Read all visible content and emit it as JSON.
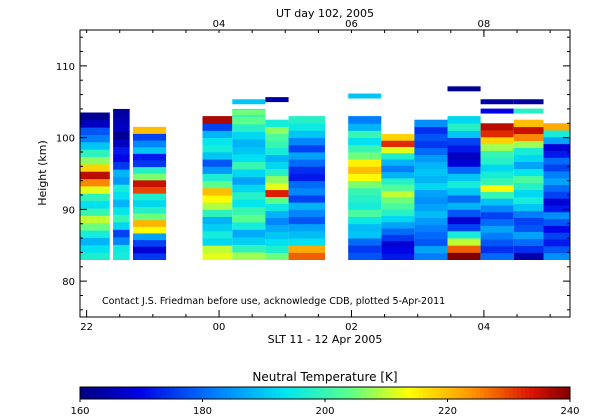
{
  "chart_data": {
    "type": "heatmap",
    "top_title": "UT day 102, 2005",
    "top_ticks": [
      "04",
      "06",
      "08"
    ],
    "top_tick_hours": [
      4,
      6,
      8
    ],
    "xlabel": "SLT 11 - 12 Apr 2005",
    "x_ticks": [
      "22",
      "00",
      "02",
      "04"
    ],
    "x_tick_hours": [
      22,
      24,
      26,
      28
    ],
    "x_range": [
      21.9,
      29.3
    ],
    "ylabel": "Height (km)",
    "y_ticks": [
      "80",
      "90",
      "100",
      "110"
    ],
    "y_tick_values": [
      80,
      90,
      100,
      110
    ],
    "ylim": [
      75,
      115
    ],
    "annotation": "Contact J.S. Friedman before use, acknowledge CDB, plotted 5-Apr-2011",
    "colorbar": {
      "title": "Neutral Temperature [K]",
      "range": [
        160,
        240
      ],
      "ticks": [
        "160",
        "180",
        "200",
        "220",
        "240"
      ],
      "tick_values": [
        160,
        180,
        200,
        220,
        240
      ]
    },
    "profile_bottom_km": 83,
    "profiles": [
      {
        "slt_start": 21.9,
        "slt_end": 22.35,
        "top_km": 103.5,
        "temps": [
          197,
          193,
          188,
          196,
          205,
          210,
          200,
          193,
          199,
          212,
          225,
          236,
          218,
          207,
          199,
          190,
          182,
          178,
          166,
          162
        ]
      },
      {
        "slt_start": 22.4,
        "slt_end": 22.65,
        "top_km": 104,
        "temps": [
          196,
          195,
          183,
          176,
          192,
          200,
          194,
          188,
          193,
          196,
          185,
          188,
          175,
          170,
          172,
          166,
          162,
          166,
          165,
          163
        ]
      },
      {
        "slt_start": 22.7,
        "slt_end": 23.2,
        "top_km": 101.5,
        "temps": [
          175,
          168,
          176,
          186,
          214,
          221,
          205,
          198,
          192,
          197,
          230,
          235,
          206,
          198,
          175,
          172,
          190,
          183,
          176,
          220
        ]
      },
      {
        "slt_start": 23.75,
        "slt_end": 24.2,
        "top_km": 103,
        "temps": [
          212,
          210,
          192,
          196,
          191,
          188,
          199,
          209,
          214,
          220,
          204,
          197,
          185,
          178,
          190,
          196,
          194,
          188,
          176,
          237
        ]
      },
      {
        "slt_start": 24.2,
        "slt_end": 24.7,
        "top_km": 104,
        "temps": [
          208,
          199,
          191,
          187,
          196,
          204,
          200,
          194,
          198,
          192,
          186,
          192,
          200,
          193,
          190,
          188,
          192,
          198,
          204,
          200
        ],
        "extra": [
          {
            "km": 105,
            "temp": 190
          },
          {
            "km": 103.5,
            "temp": 205
          }
        ]
      },
      {
        "slt_start": 24.7,
        "slt_end": 25.05,
        "top_km": 102.5,
        "temps": [
          205,
          197,
          193,
          190,
          187,
          183,
          188,
          195,
          204,
          233,
          212,
          207,
          198,
          192,
          188,
          196,
          200,
          202,
          207,
          196
        ],
        "extra": [
          {
            "km": 105.3,
            "temp": 164
          }
        ]
      },
      {
        "slt_start": 25.05,
        "slt_end": 25.6,
        "top_km": 103,
        "temps": [
          228,
          222,
          193,
          189,
          186,
          178,
          183,
          188,
          176,
          183,
          180,
          172,
          174,
          180,
          186,
          176,
          183,
          190,
          195,
          198
        ]
      },
      {
        "slt_start": 25.95,
        "slt_end": 26.45,
        "top_km": 103,
        "temps": [
          178,
          175,
          180,
          190,
          189,
          195,
          202,
          196,
          198,
          200,
          206,
          214,
          220,
          215,
          205,
          200,
          193,
          200,
          188,
          182
        ],
        "extra": [
          {
            "km": 105.8,
            "temp": 190
          }
        ]
      },
      {
        "slt_start": 26.45,
        "slt_end": 26.95,
        "top_km": 100.5,
        "temps": [
          172,
          170,
          168,
          175,
          180,
          186,
          192,
          198,
          202,
          205,
          210,
          203,
          198,
          188,
          182,
          188,
          197,
          212,
          232,
          218
        ]
      },
      {
        "slt_start": 26.95,
        "slt_end": 27.45,
        "top_km": 102.5,
        "temps": [
          182,
          186,
          178,
          180,
          182,
          185,
          189,
          186,
          184,
          186,
          192,
          188,
          190,
          188,
          185,
          180,
          175,
          178,
          174,
          184
        ]
      },
      {
        "slt_start": 27.45,
        "slt_end": 27.95,
        "top_km": 103,
        "temps": [
          240,
          228,
          210,
          196,
          176,
          168,
          178,
          188,
          180,
          190,
          196,
          190,
          180,
          168,
          166,
          172,
          176,
          190,
          198,
          192
        ],
        "extra": [
          {
            "km": 106.8,
            "temp": 162
          }
        ]
      },
      {
        "slt_start": 27.95,
        "slt_end": 28.45,
        "top_km": 102,
        "temps": [
          180,
          174,
          178,
          182,
          186,
          180,
          176,
          183,
          190,
          200,
          214,
          200,
          196,
          192,
          198,
          200,
          208,
          218,
          232,
          236
        ],
        "extra": [
          {
            "km": 103.7,
            "temp": 170
          },
          {
            "km": 105,
            "temp": 163
          }
        ]
      },
      {
        "slt_start": 28.45,
        "slt_end": 28.9,
        "top_km": 102.5,
        "temps": [
          164,
          174,
          180,
          186,
          178,
          176,
          182,
          190,
          196,
          192,
          198,
          202,
          194,
          186,
          192,
          196,
          208,
          225,
          235,
          220
        ],
        "extra": [
          {
            "km": 103.7,
            "temp": 198
          },
          {
            "km": 105,
            "temp": 163
          }
        ]
      },
      {
        "slt_start": 28.9,
        "slt_end": 29.3,
        "top_km": 102,
        "temps": [
          184,
          178,
          172,
          176,
          170,
          178,
          184,
          172,
          168,
          176,
          180,
          186,
          182,
          176,
          180,
          172,
          168,
          186,
          196,
          222
        ]
      }
    ]
  }
}
